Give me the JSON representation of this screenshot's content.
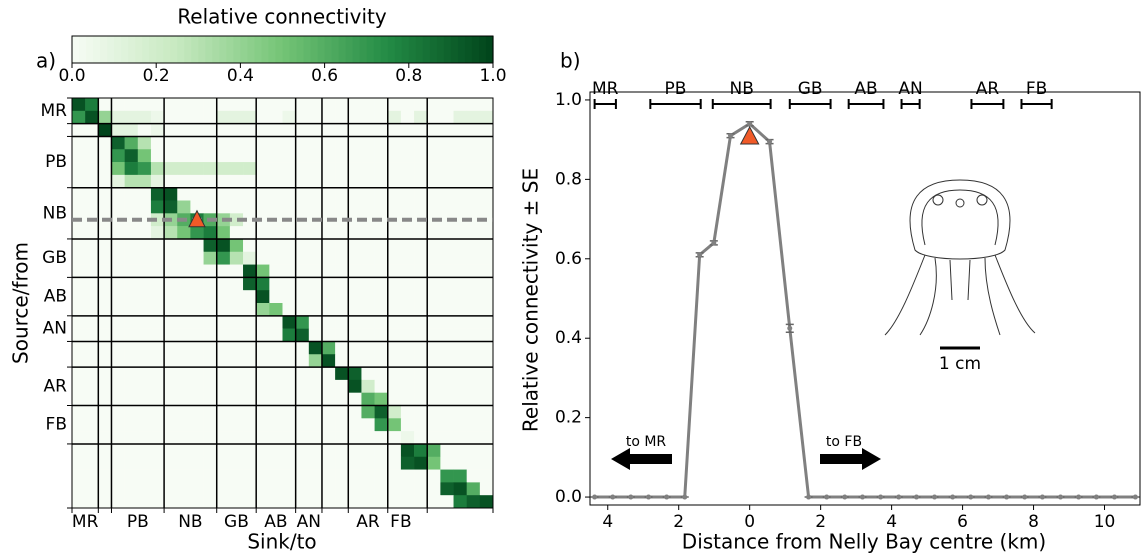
{
  "chart_data": [
    {
      "type": "heatmap",
      "panel": "a)",
      "title": "Relative connectivity",
      "xlabel": "Sink/to",
      "ylabel": "Source/from",
      "x_labels": [
        "MR",
        "PB",
        "NB",
        "GB",
        "AB",
        "AN",
        "AR",
        "FB"
      ],
      "y_labels": [
        "MR",
        "PB",
        "NB",
        "GB",
        "AB",
        "AN",
        "AR",
        "FB"
      ],
      "clim": [
        0,
        1
      ],
      "cticks": [
        {
          "value": 0,
          "label": "0.0"
        },
        0.2,
        0.4,
        0.6,
        0.8,
        {
          "value": 1,
          "label": "1.0"
        }
      ],
      "colormap": [
        "#f7fcf5",
        "#c7e9c0",
        "#74c476",
        "#238b45",
        "#00441b"
      ],
      "matrix": [
        [
          0.95,
          0.8,
          0,
          0,
          0,
          0,
          0,
          0,
          0,
          0,
          0,
          0,
          0,
          0,
          0,
          0,
          0,
          0,
          0,
          0,
          0,
          0,
          0,
          0,
          0,
          0,
          0,
          0,
          0,
          0,
          0,
          0
        ],
        [
          0.7,
          0.95,
          0.4,
          0.1,
          0.1,
          0.1,
          0.05,
          0,
          0,
          0,
          0,
          0.1,
          0.1,
          0.1,
          0,
          0,
          0.05,
          0,
          0,
          0,
          0,
          0,
          0,
          0,
          0.1,
          0,
          0.1,
          0,
          0,
          0.1,
          0.1,
          0.1
        ],
        [
          0,
          0,
          1,
          0.1,
          0.1,
          0,
          0.05,
          0,
          0,
          0,
          0,
          0,
          0,
          0,
          0,
          0,
          0,
          0,
          0,
          0,
          0,
          0,
          0,
          0,
          0,
          0,
          0,
          0,
          0,
          0,
          0,
          0
        ],
        [
          0,
          0,
          0,
          0.9,
          0.6,
          0.3,
          0,
          0,
          0,
          0,
          0,
          0,
          0,
          0,
          0,
          0,
          0,
          0,
          0,
          0,
          0,
          0,
          0,
          0,
          0,
          0,
          0,
          0,
          0,
          0,
          0,
          0
        ],
        [
          0,
          0,
          0,
          0.7,
          0.9,
          0.5,
          0,
          0,
          0,
          0,
          0,
          0,
          0,
          0,
          0,
          0,
          0,
          0,
          0,
          0,
          0,
          0,
          0,
          0,
          0,
          0,
          0,
          0,
          0,
          0,
          0,
          0
        ],
        [
          0,
          0,
          0,
          0.5,
          0.8,
          0.7,
          0.3,
          0.2,
          0.2,
          0.2,
          0.2,
          0.2,
          0.2,
          0.2,
          0,
          0,
          0,
          0,
          0,
          0,
          0,
          0,
          0,
          0,
          0,
          0,
          0,
          0,
          0,
          0,
          0,
          0
        ],
        [
          0,
          0,
          0,
          0.1,
          0.3,
          0.3,
          0.1,
          0,
          0,
          0,
          0,
          0,
          0,
          0,
          0,
          0,
          0,
          0,
          0,
          0,
          0,
          0,
          0,
          0,
          0,
          0,
          0,
          0,
          0,
          0,
          0,
          0
        ],
        [
          0,
          0,
          0,
          0,
          0,
          0,
          0.9,
          0.95,
          0,
          0,
          0,
          0,
          0,
          0,
          0,
          0,
          0,
          0,
          0,
          0,
          0,
          0,
          0,
          0,
          0,
          0,
          0,
          0,
          0,
          0,
          0,
          0
        ],
        [
          0,
          0,
          0,
          0,
          0,
          0,
          0.8,
          0.9,
          0.4,
          0,
          0,
          0,
          0,
          0,
          0,
          0,
          0,
          0,
          0,
          0,
          0,
          0,
          0,
          0,
          0,
          0,
          0,
          0,
          0,
          0,
          0,
          0
        ],
        [
          0,
          0,
          0,
          0,
          0,
          0,
          0.2,
          0.4,
          0.6,
          0.8,
          0.6,
          0.4,
          0.2,
          0,
          0,
          0,
          0,
          0,
          0,
          0,
          0,
          0,
          0,
          0,
          0,
          0,
          0,
          0,
          0,
          0,
          0,
          0
        ],
        [
          0,
          0,
          0,
          0,
          0,
          0,
          0.1,
          0.3,
          0.5,
          0.7,
          0.8,
          0.5,
          0,
          0,
          0,
          0,
          0,
          0,
          0,
          0,
          0,
          0,
          0,
          0,
          0,
          0,
          0,
          0,
          0,
          0,
          0,
          0
        ],
        [
          0,
          0,
          0,
          0,
          0,
          0,
          0,
          0,
          0,
          0,
          0.9,
          0.95,
          0.5,
          0,
          0,
          0,
          0,
          0,
          0,
          0,
          0,
          0,
          0,
          0,
          0,
          0,
          0,
          0,
          0,
          0,
          0,
          0
        ],
        [
          0,
          0,
          0,
          0,
          0,
          0,
          0,
          0,
          0,
          0,
          0.4,
          0.7,
          0.3,
          0.1,
          0,
          0,
          0,
          0,
          0,
          0,
          0,
          0,
          0,
          0,
          0,
          0,
          0,
          0,
          0,
          0,
          0,
          0
        ],
        [
          0,
          0,
          0,
          0,
          0,
          0,
          0,
          0,
          0,
          0,
          0,
          0,
          0,
          0.95,
          0.5,
          0,
          0,
          0,
          0,
          0,
          0,
          0,
          0,
          0,
          0,
          0,
          0,
          0,
          0,
          0,
          0,
          0
        ],
        [
          0,
          0,
          0,
          0,
          0,
          0,
          0,
          0,
          0,
          0,
          0,
          0,
          0,
          0.9,
          0.8,
          0,
          0,
          0,
          0,
          0,
          0,
          0,
          0,
          0,
          0,
          0,
          0,
          0,
          0,
          0,
          0,
          0
        ],
        [
          0,
          0,
          0,
          0,
          0,
          0,
          0,
          0,
          0,
          0,
          0,
          0,
          0,
          0,
          0.95,
          0,
          0,
          0,
          0,
          0,
          0,
          0,
          0,
          0,
          0,
          0,
          0,
          0,
          0,
          0,
          0,
          0
        ],
        [
          0,
          0,
          0,
          0,
          0,
          0,
          0,
          0,
          0,
          0,
          0,
          0,
          0,
          0,
          0.4,
          0.5,
          0,
          0,
          0,
          0,
          0,
          0,
          0,
          0,
          0,
          0,
          0,
          0,
          0,
          0,
          0,
          0
        ],
        [
          0,
          0,
          0,
          0,
          0,
          0,
          0,
          0,
          0,
          0,
          0,
          0,
          0,
          0,
          0,
          0,
          0.95,
          0.7,
          0,
          0,
          0,
          0,
          0,
          0,
          0,
          0,
          0,
          0,
          0,
          0,
          0,
          0
        ],
        [
          0,
          0,
          0,
          0,
          0,
          0,
          0,
          0,
          0,
          0,
          0,
          0,
          0,
          0,
          0,
          0,
          0.8,
          0.9,
          0,
          0,
          0,
          0,
          0,
          0,
          0,
          0,
          0,
          0,
          0,
          0,
          0,
          0
        ],
        [
          0,
          0,
          0,
          0,
          0,
          0,
          0,
          0,
          0,
          0,
          0,
          0,
          0,
          0,
          0,
          0,
          0,
          0,
          0.95,
          0.6,
          0,
          0,
          0,
          0,
          0,
          0,
          0,
          0,
          0,
          0,
          0,
          0
        ],
        [
          0,
          0,
          0,
          0,
          0,
          0,
          0,
          0,
          0,
          0,
          0,
          0,
          0,
          0,
          0,
          0,
          0,
          0,
          0.4,
          0.95,
          0,
          0,
          0,
          0,
          0,
          0,
          0,
          0,
          0,
          0,
          0,
          0
        ],
        [
          0,
          0,
          0,
          0,
          0,
          0,
          0,
          0,
          0,
          0,
          0,
          0,
          0,
          0,
          0,
          0,
          0,
          0,
          0,
          0,
          0.95,
          0.9,
          0,
          0,
          0,
          0,
          0,
          0,
          0,
          0,
          0,
          0
        ],
        [
          0,
          0,
          0,
          0,
          0,
          0,
          0,
          0,
          0,
          0,
          0,
          0,
          0,
          0,
          0,
          0,
          0,
          0,
          0,
          0,
          0,
          0.95,
          0.2,
          0,
          0,
          0,
          0,
          0,
          0,
          0,
          0,
          0
        ],
        [
          0,
          0,
          0,
          0,
          0,
          0,
          0,
          0,
          0,
          0,
          0,
          0,
          0,
          0,
          0,
          0,
          0,
          0,
          0,
          0,
          0,
          0,
          0.6,
          0.5,
          0,
          0,
          0,
          0,
          0,
          0,
          0,
          0
        ],
        [
          0,
          0,
          0,
          0,
          0,
          0,
          0,
          0,
          0,
          0,
          0,
          0,
          0,
          0,
          0,
          0,
          0,
          0,
          0,
          0,
          0,
          0,
          0.6,
          0.9,
          0.2,
          0,
          0,
          0,
          0,
          0,
          0,
          0
        ],
        [
          0,
          0,
          0,
          0,
          0,
          0,
          0,
          0,
          0,
          0,
          0,
          0,
          0,
          0,
          0,
          0,
          0,
          0,
          0,
          0,
          0,
          0,
          0,
          0.7,
          0.5,
          0,
          0,
          0,
          0,
          0,
          0,
          0
        ],
        [
          0,
          0,
          0,
          0,
          0,
          0,
          0,
          0,
          0,
          0,
          0,
          0,
          0,
          0,
          0,
          0,
          0,
          0,
          0,
          0,
          0,
          0,
          0,
          0,
          0,
          0.05,
          0,
          0,
          0,
          0,
          0,
          0
        ],
        [
          0,
          0,
          0,
          0,
          0,
          0,
          0,
          0,
          0,
          0,
          0,
          0,
          0,
          0,
          0,
          0,
          0,
          0,
          0,
          0,
          0,
          0,
          0,
          0,
          0,
          0.95,
          0.8,
          0.6,
          0,
          0,
          0,
          0
        ],
        [
          0,
          0,
          0,
          0,
          0,
          0,
          0,
          0,
          0,
          0,
          0,
          0,
          0,
          0,
          0,
          0,
          0,
          0,
          0,
          0,
          0,
          0,
          0,
          0,
          0,
          0.9,
          0.95,
          0.5,
          0,
          0,
          0,
          0
        ],
        [
          0,
          0,
          0,
          0,
          0,
          0,
          0,
          0,
          0,
          0,
          0,
          0,
          0,
          0,
          0,
          0,
          0,
          0,
          0,
          0,
          0,
          0,
          0,
          0,
          0,
          0,
          0,
          0,
          0.7,
          0.7,
          0,
          0
        ],
        [
          0,
          0,
          0,
          0,
          0,
          0,
          0,
          0,
          0,
          0,
          0,
          0,
          0,
          0,
          0,
          0,
          0,
          0,
          0,
          0,
          0,
          0,
          0,
          0,
          0,
          0,
          0,
          0,
          0.9,
          0.95,
          0.6,
          0
        ],
        [
          0,
          0,
          0,
          0,
          0,
          0,
          0,
          0,
          0,
          0,
          0,
          0,
          0,
          0,
          0,
          0,
          0,
          0,
          0,
          0,
          0,
          0,
          0,
          0,
          0,
          0,
          0,
          0,
          0,
          0.8,
          0.9,
          0.95
        ]
      ]
    },
    {
      "type": "line",
      "panel": "b)",
      "xlabel": "Distance from Nelly Bay centre (km)",
      "ylabel": "Relative connectivity ± SE",
      "color": "#808080",
      "x": [
        -4.37,
        -3.86,
        -3.35,
        -2.85,
        -2.34,
        -1.83,
        -1.41,
        -1.01,
        -0.54,
        0,
        0.56,
        1.13,
        1.66,
        2.17,
        2.68,
        3.18,
        3.69,
        4.2,
        4.7,
        5.21,
        5.72,
        6.23,
        6.73,
        7.24,
        7.75,
        8.25,
        8.76,
        9.27,
        9.77,
        10.28,
        10.87
      ],
      "values": [
        0,
        0,
        0,
        0,
        0,
        0,
        0.61,
        0.64,
        0.91,
        0.94,
        0.895,
        0.425,
        0,
        0,
        0,
        0,
        0,
        0,
        0,
        0,
        0,
        0,
        0,
        0,
        0,
        0,
        0,
        0,
        0,
        0,
        0
      ],
      "errors": [
        0,
        0,
        0,
        0,
        0,
        0,
        0.005,
        0.005,
        0.005,
        0.005,
        0.005,
        0.01,
        0,
        0,
        0,
        0,
        0,
        0,
        0,
        0,
        0,
        0,
        0,
        0,
        0,
        0,
        0,
        0,
        0,
        0,
        0
      ],
      "xlim": [
        -4.5,
        11
      ],
      "xticks": [
        {
          "value": -4,
          "label": "4"
        },
        {
          "value": -2,
          "label": "2"
        },
        0,
        2,
        4,
        6,
        8,
        10
      ],
      "ylim": [
        -0.02,
        1.02
      ],
      "yticks": [
        {
          "value": 0,
          "label": "0.0"
        },
        0.2,
        0.4,
        0.6,
        0.8,
        {
          "value": 1,
          "label": "1.0"
        }
      ],
      "regions": [
        {
          "name": "MR",
          "start": -4.37,
          "end": -3.77
        },
        {
          "name": "PB",
          "start": -2.8,
          "end": -1.38
        },
        {
          "name": "NB",
          "start": -1.04,
          "end": 0.59
        },
        {
          "name": "GB",
          "start": 1.13,
          "end": 2.28
        },
        {
          "name": "AB",
          "start": 2.79,
          "end": 3.77
        },
        {
          "name": "AN",
          "start": 4.28,
          "end": 4.79
        },
        {
          "name": "AR",
          "start": 6.25,
          "end": 7.15
        },
        {
          "name": "FB",
          "start": 7.66,
          "end": 8.51
        }
      ],
      "arrow_left": "to MR",
      "arrow_right": "to FB",
      "scale_label": "1 cm"
    }
  ]
}
